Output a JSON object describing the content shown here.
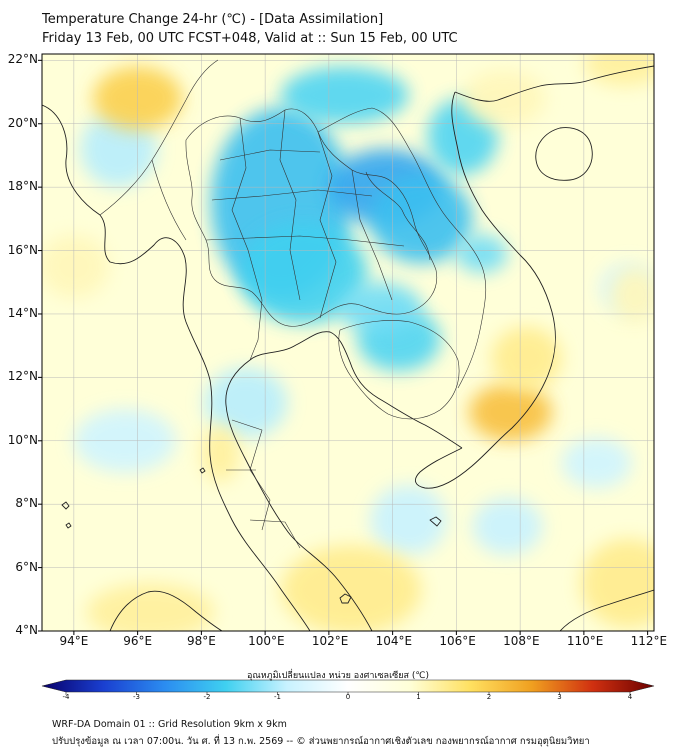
{
  "header": {
    "title_line1": "Temperature Change 24-hr (℃) - [Data Assimilation]",
    "title_line2": "Friday 13 Feb, 00 UTC FCST+048, Valid at :: Sun 15 Feb, 00 UTC"
  },
  "map": {
    "projection": "lat-lon",
    "lon_range": [
      93,
      112.2
    ],
    "lat_range": [
      4,
      22.2
    ],
    "lon_ticks": [
      94,
      96,
      98,
      100,
      102,
      104,
      106,
      108,
      110,
      112
    ],
    "lat_ticks": [
      4,
      6,
      8,
      10,
      12,
      14,
      16,
      18,
      20,
      22
    ],
    "lon_labels": [
      "94°E",
      "96°E",
      "98°E",
      "100°E",
      "102°E",
      "104°E",
      "106°E",
      "108°E",
      "110°E",
      "112°E"
    ],
    "lat_labels": [
      "4°N",
      "6°N",
      "8°N",
      "10°N",
      "12°N",
      "14°N",
      "16°N",
      "18°N",
      "20°N",
      "22°N"
    ],
    "background_color": "#ffffd8",
    "features": [
      {
        "kind": "cool",
        "lon": 100.5,
        "lat": 17.5,
        "rx": 2.2,
        "ry": 3.0,
        "value": -1.8
      },
      {
        "kind": "cool",
        "lon": 101.2,
        "lat": 15.3,
        "rx": 2.0,
        "ry": 1.6,
        "value": -1.6
      },
      {
        "kind": "cool",
        "lon": 103.8,
        "lat": 18.0,
        "rx": 1.8,
        "ry": 1.2,
        "value": -2.1
      },
      {
        "kind": "cool",
        "lon": 104.9,
        "lat": 17.0,
        "rx": 1.6,
        "ry": 1.4,
        "value": -1.8
      },
      {
        "kind": "cool",
        "lon": 102.5,
        "lat": 20.9,
        "rx": 2.0,
        "ry": 0.9,
        "value": -1.5
      },
      {
        "kind": "cool",
        "lon": 106.2,
        "lat": 19.6,
        "rx": 1.1,
        "ry": 1.2,
        "value": -1.5
      },
      {
        "kind": "cool",
        "lon": 104.2,
        "lat": 13.2,
        "rx": 1.3,
        "ry": 1.0,
        "value": -1.5
      },
      {
        "kind": "cool",
        "lon": 103.6,
        "lat": 14.2,
        "rx": 1.3,
        "ry": 0.8,
        "value": -1.3
      },
      {
        "kind": "cool",
        "lon": 106.8,
        "lat": 15.9,
        "rx": 0.8,
        "ry": 0.6,
        "value": -1.3
      },
      {
        "kind": "cool",
        "lon": 99.4,
        "lat": 11.2,
        "rx": 1.3,
        "ry": 1.1,
        "value": -0.9
      },
      {
        "kind": "cool",
        "lon": 95.6,
        "lat": 10.0,
        "rx": 1.6,
        "ry": 1.0,
        "value": -0.7
      },
      {
        "kind": "cool",
        "lon": 95.4,
        "lat": 19.2,
        "rx": 1.2,
        "ry": 1.2,
        "value": -0.9
      },
      {
        "kind": "cool",
        "lon": 104.5,
        "lat": 7.5,
        "rx": 1.2,
        "ry": 1.1,
        "value": -0.8
      },
      {
        "kind": "cool",
        "lon": 107.6,
        "lat": 7.3,
        "rx": 1.1,
        "ry": 0.9,
        "value": -0.8
      },
      {
        "kind": "cool",
        "lon": 110.4,
        "lat": 9.3,
        "rx": 1.1,
        "ry": 0.8,
        "value": -0.7
      },
      {
        "kind": "cool",
        "lon": 111.4,
        "lat": 14.8,
        "rx": 0.9,
        "ry": 0.8,
        "value": -0.6
      },
      {
        "kind": "warm",
        "lon": 96.0,
        "lat": 20.8,
        "rx": 1.4,
        "ry": 1.0,
        "value": 1.8
      },
      {
        "kind": "warm",
        "lon": 107.7,
        "lat": 10.9,
        "rx": 1.3,
        "ry": 0.9,
        "value": 2.0
      },
      {
        "kind": "warm",
        "lon": 108.2,
        "lat": 12.6,
        "rx": 1.1,
        "ry": 1.0,
        "value": 1.3
      },
      {
        "kind": "warm",
        "lon": 102.7,
        "lat": 5.3,
        "rx": 2.2,
        "ry": 1.4,
        "value": 1.3
      },
      {
        "kind": "warm",
        "lon": 96.4,
        "lat": 4.6,
        "rx": 2.0,
        "ry": 0.9,
        "value": 1.2
      },
      {
        "kind": "warm",
        "lon": 111.4,
        "lat": 5.5,
        "rx": 1.5,
        "ry": 1.4,
        "value": 1.3
      },
      {
        "kind": "warm",
        "lon": 111.3,
        "lat": 21.9,
        "rx": 1.3,
        "ry": 0.7,
        "value": 1.2
      },
      {
        "kind": "warm",
        "lon": 107.5,
        "lat": 20.8,
        "rx": 1.3,
        "ry": 0.9,
        "value": 1.0
      },
      {
        "kind": "warm",
        "lon": 111.6,
        "lat": 14.6,
        "rx": 0.8,
        "ry": 0.9,
        "value": 1.0
      },
      {
        "kind": "warm",
        "lon": 94.0,
        "lat": 15.5,
        "rx": 1.1,
        "ry": 1.0,
        "value": 1.0
      },
      {
        "kind": "warm",
        "lon": 98.6,
        "lat": 9.6,
        "rx": 0.6,
        "ry": 0.9,
        "value": 1.2
      }
    ]
  },
  "colorbar": {
    "title": "อุณหภูมิเปลี่ยนแปลง หน่วย องศาเซลเซียส (℃)",
    "min": -4,
    "max": 4,
    "tick_values": [
      -4,
      -3,
      -2,
      -1,
      0,
      1,
      2,
      3,
      4
    ],
    "tick_labels": [
      "-4",
      "-3",
      "-2",
      "-1",
      "0",
      "1",
      "2",
      "3",
      "4"
    ],
    "colors": [
      "#08006a",
      "#1a3fd0",
      "#2b8cf0",
      "#3fd0f0",
      "#c8f2ff",
      "#ffffff",
      "#ffffd8",
      "#ffe060",
      "#f0a020",
      "#d03010",
      "#6a0000"
    ]
  },
  "footer": {
    "line1": "WRF-DA Domain 01 :: Grid Resolution 9km x 9km",
    "line2": "ปรับปรุงข้อมูล ณ เวลา 07:00น. วัน ศ. ที่ 13 ก.พ. 2569 -- © ส่วนพยากรณ์อากาศเชิงตัวเลข กองพยากรณ์อากาศ กรมอุตุนิยมวิทยา"
  }
}
